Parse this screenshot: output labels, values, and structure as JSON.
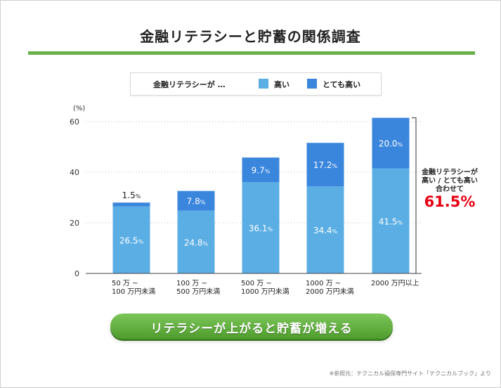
{
  "title": "金融リテラシーと貯蓄の関係調査",
  "legend": {
    "prefix": "金融リテラシーが …",
    "items": [
      {
        "label": "高い",
        "color": "#5aaee4"
      },
      {
        "label": "とても高い",
        "color": "#3a86dd"
      }
    ]
  },
  "chart_data": {
    "type": "bar",
    "stacked": true,
    "y_unit_label": "(%)",
    "ylim": [
      0,
      60
    ],
    "yticks": [
      0,
      20,
      40,
      60
    ],
    "grid": true,
    "categories": [
      [
        "50 万 ~",
        "100 万円未満"
      ],
      [
        "100 万 ~",
        "500 万円未満"
      ],
      [
        "500 万 ~",
        "1000 万円未満"
      ],
      [
        "1000 万 ~",
        "2000 万円未満"
      ],
      [
        "2000 万円以上"
      ]
    ],
    "series": [
      {
        "name": "高い",
        "color": "#5aaee4",
        "values": [
          26.5,
          24.8,
          36.1,
          34.4,
          41.5
        ]
      },
      {
        "name": "とても高い",
        "color": "#3a86dd",
        "values": [
          1.5,
          7.8,
          9.7,
          17.2,
          20.0
        ]
      }
    ],
    "labels": {
      "high": [
        "26.5",
        "24.8",
        "36.1",
        "34.4",
        "41.5"
      ],
      "very_high": [
        "1.5",
        "7.8",
        "9.7",
        "17.2",
        "20.0"
      ]
    },
    "percent_sign": "%"
  },
  "callout": {
    "line1": "金融リテラシーが",
    "line2": "高い / とても高い",
    "line3": "合わせて",
    "total": "61.5%"
  },
  "banner": "リテラシーが上がると貯蓄が増える",
  "source": "※参照元：テクニカル損保専門サイト「テクニカルブック」より"
}
